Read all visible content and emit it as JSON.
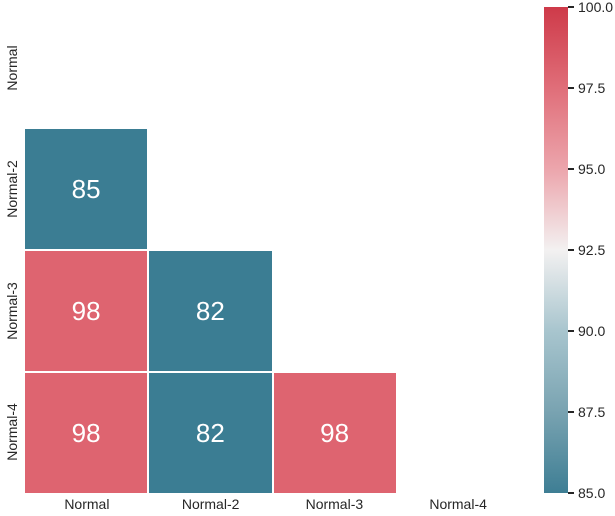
{
  "chart_data": {
    "type": "heatmap",
    "title": "",
    "xlabel": "",
    "ylabel": "",
    "categories": [
      "Normal",
      "Normal-2",
      "Normal-3",
      "Normal-4"
    ],
    "x_tick_labels": [
      "Normal",
      "Normal-2",
      "Normal-3",
      "Normal-4"
    ],
    "y_tick_labels": [
      "Normal",
      "Normal-2",
      "Normal-3",
      "Normal-4"
    ],
    "matrix": [
      [
        null,
        null,
        null,
        null
      ],
      [
        85,
        null,
        null,
        null
      ],
      [
        98,
        82,
        null,
        null
      ],
      [
        98,
        82,
        98,
        null
      ]
    ],
    "mask": "upper-triangle-including-diagonal",
    "vmin": 85,
    "vmax": 100,
    "center": 92.5,
    "grid": false,
    "legend_position": "none",
    "annotation_text_color": "#ffffff",
    "tick_text_color": "#262626",
    "value_colors": {
      "82": "#3b7d93",
      "85": "#3b7d93",
      "98": "#de6470"
    },
    "colorbar": {
      "side": "right",
      "tick_labels": [
        "100.0",
        "97.5",
        "95.0",
        "92.5",
        "90.0",
        "87.5",
        "85.0"
      ],
      "tick_values": [
        100,
        97.5,
        95,
        92.5,
        90,
        87.5,
        85
      ],
      "gradient_stops": [
        {
          "value": 85,
          "color": "#3e7e94"
        },
        {
          "value": 87.5,
          "color": "#79a3b1"
        },
        {
          "value": 90,
          "color": "#a8c5ce"
        },
        {
          "value": 92.5,
          "color": "#f3f1f1"
        },
        {
          "value": 95,
          "color": "#eca5ac"
        },
        {
          "value": 97.5,
          "color": "#e06e79"
        },
        {
          "value": 100,
          "color": "#ce3a49"
        }
      ]
    }
  }
}
